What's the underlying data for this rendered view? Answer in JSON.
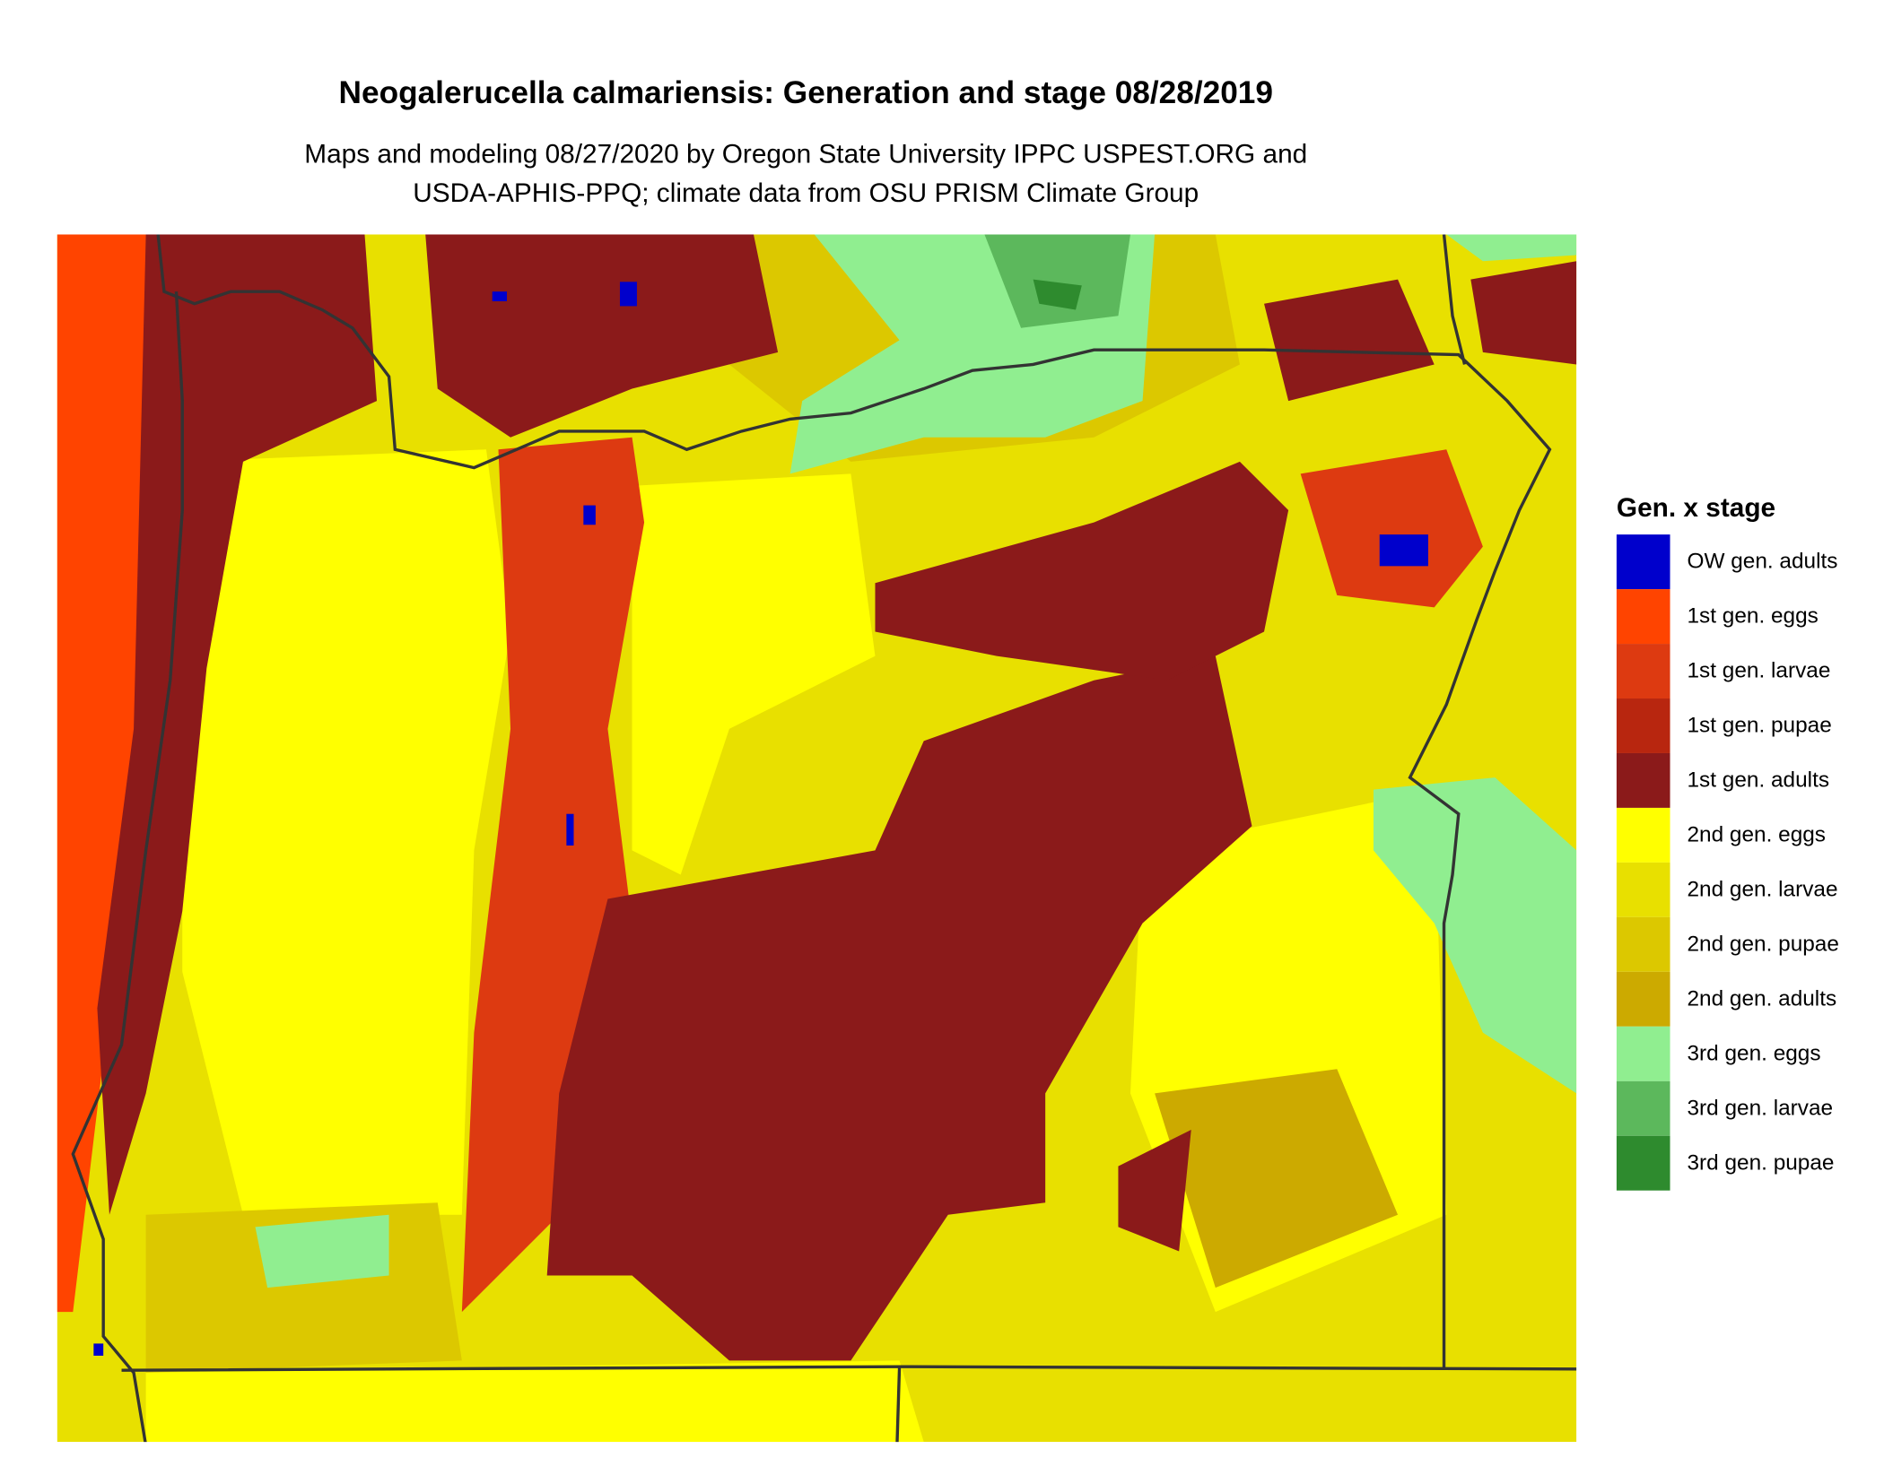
{
  "header": {
    "title": "Neogalerucella calmariensis: Generation and stage 08/28/2019",
    "subtitle_lines": [
      "Maps and modeling 08/27/2020 by Oregon State University IPPC USPEST.ORG and",
      "USDA-APHIS-PPQ; climate data from OSU PRISM Climate Group"
    ]
  },
  "legend": {
    "title": "Gen. x stage",
    "items": [
      {
        "label": "OW gen. adults",
        "color": "#0000cc"
      },
      {
        "label": "1st gen. eggs",
        "color": "#ff4400"
      },
      {
        "label": "1st gen. larvae",
        "color": "#dd3a11"
      },
      {
        "label": "1st gen. pupae",
        "color": "#b8260f"
      },
      {
        "label": "1st gen. adults",
        "color": "#8b1a1a"
      },
      {
        "label": "2nd gen. eggs",
        "color": "#ffff00"
      },
      {
        "label": "2nd gen. larvae",
        "color": "#e8e000"
      },
      {
        "label": "2nd gen. pupae",
        "color": "#dcc800"
      },
      {
        "label": "2nd gen. adults",
        "color": "#ccaa00"
      },
      {
        "label": "3rd gen. eggs",
        "color": "#90ee90"
      },
      {
        "label": "3rd gen. larvae",
        "color": "#5cb85c"
      },
      {
        "label": "3rd gen. pupae",
        "color": "#2e8b2e"
      }
    ]
  }
}
